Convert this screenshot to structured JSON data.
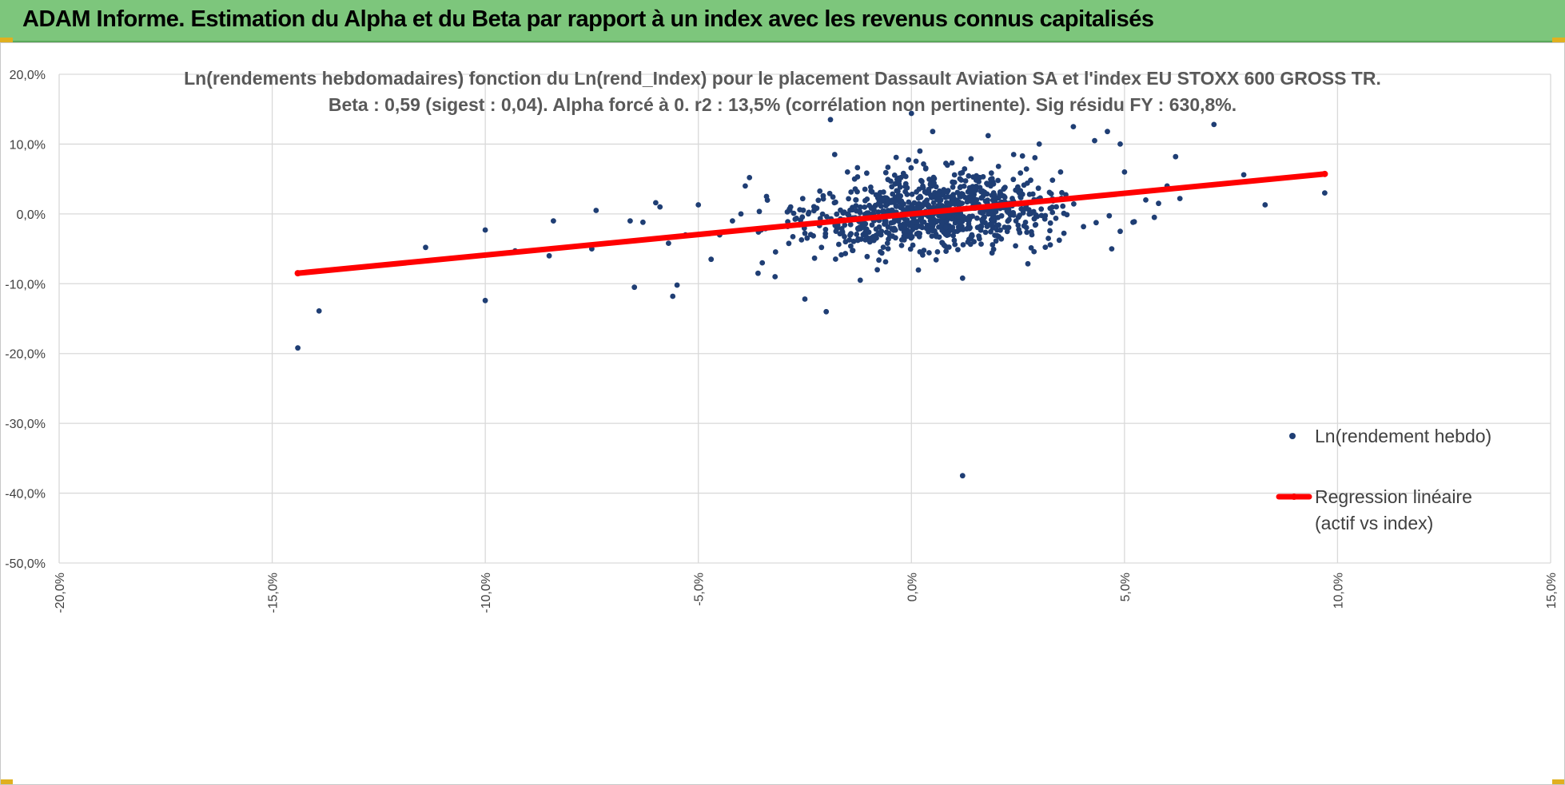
{
  "banner": {
    "title": "ADAM Informe. Estimation du Alpha et du Beta par rapport à un index avec les revenus connus capitalisés",
    "background": "#7dc67c"
  },
  "chart_data": {
    "type": "scatter",
    "title_line1": "Ln(rendements hebdomadaires) fonction du Ln(rend_Index) pour le placement Dassault Aviation SA et l'index EU STOXX 600 GROSS TR.",
    "title_line2": "Beta : 0,59 (sigest : 0,04). Alpha forcé à 0. r2 : 13,5% (corrélation non pertinente). Sig résidu FY : 630,8%.",
    "xlim": [
      -0.2,
      0.15
    ],
    "ylim": [
      -0.5,
      0.2
    ],
    "x_ticks": [
      -0.2,
      -0.15,
      -0.1,
      -0.05,
      0.0,
      0.05,
      0.1,
      0.15
    ],
    "x_tick_labels": [
      "-20,0%",
      "-15,0%",
      "-10,0%",
      "-5,0%",
      "0,0%",
      "5,0%",
      "10,0%",
      "15,0%"
    ],
    "y_ticks": [
      0.2,
      0.1,
      0.0,
      -0.1,
      -0.2,
      -0.3,
      -0.4,
      -0.5
    ],
    "y_tick_labels": [
      "20,0%",
      "10,0%",
      "0,0%",
      "-10,0%",
      "-20,0%",
      "-30,0%",
      "-40,0%",
      "-50,0%"
    ],
    "grid": true,
    "legend_position": "right",
    "legend": [
      "Ln(rendement hebdo)",
      "Regression linéaire",
      "(actif vs index)"
    ],
    "series": [
      {
        "name": "Ln(rendement hebdo)",
        "kind": "points",
        "color": "#1f3e74",
        "note_cluster": {
          "x_center": 0.005,
          "y_center": 0.003,
          "count_approx": 900
        },
        "points": [
          [
            -0.144,
            -0.192
          ],
          [
            -0.139,
            -0.139
          ],
          [
            -0.114,
            -0.048
          ],
          [
            -0.1,
            -0.023
          ],
          [
            -0.1,
            -0.124
          ],
          [
            -0.093,
            -0.053
          ],
          [
            -0.084,
            -0.01
          ],
          [
            -0.085,
            -0.06
          ],
          [
            -0.074,
            0.005
          ],
          [
            -0.075,
            -0.05
          ],
          [
            -0.066,
            -0.01
          ],
          [
            -0.065,
            -0.105
          ],
          [
            -0.063,
            -0.012
          ],
          [
            -0.06,
            0.016
          ],
          [
            -0.059,
            0.01
          ],
          [
            -0.057,
            -0.042
          ],
          [
            -0.056,
            -0.118
          ],
          [
            -0.055,
            -0.102
          ],
          [
            -0.053,
            -0.03
          ],
          [
            -0.05,
            0.013
          ],
          [
            -0.047,
            -0.065
          ],
          [
            -0.045,
            -0.03
          ],
          [
            -0.042,
            -0.01
          ],
          [
            -0.04,
            0.0
          ],
          [
            -0.039,
            0.04
          ],
          [
            -0.038,
            0.052
          ],
          [
            -0.036,
            -0.085
          ],
          [
            -0.035,
            -0.07
          ],
          [
            -0.034,
            0.025
          ],
          [
            -0.032,
            -0.09
          ],
          [
            -0.025,
            -0.122
          ],
          [
            -0.02,
            -0.14
          ],
          [
            -0.019,
            0.135
          ],
          [
            -0.018,
            0.085
          ],
          [
            -0.015,
            0.06
          ],
          [
            -0.012,
            -0.095
          ],
          [
            -0.008,
            -0.08
          ],
          [
            0.0,
            0.144
          ],
          [
            0.002,
            0.09
          ],
          [
            0.005,
            0.118
          ],
          [
            0.012,
            -0.092
          ],
          [
            0.012,
            -0.375
          ],
          [
            0.018,
            0.112
          ],
          [
            0.024,
            0.085
          ],
          [
            0.03,
            0.1
          ],
          [
            0.035,
            0.06
          ],
          [
            0.038,
            0.125
          ],
          [
            0.043,
            0.105
          ],
          [
            0.046,
            0.118
          ],
          [
            0.047,
            -0.05
          ],
          [
            0.049,
            0.1
          ],
          [
            0.049,
            -0.025
          ],
          [
            0.05,
            0.06
          ],
          [
            0.052,
            -0.012
          ],
          [
            0.055,
            0.02
          ],
          [
            0.057,
            -0.005
          ],
          [
            0.058,
            0.015
          ],
          [
            0.06,
            0.04
          ],
          [
            0.062,
            0.082
          ],
          [
            0.063,
            0.022
          ],
          [
            0.071,
            0.128
          ],
          [
            0.078,
            0.056
          ],
          [
            0.083,
            0.013
          ],
          [
            0.097,
            0.03
          ]
        ]
      },
      {
        "name": "Regression linéaire (actif vs index)",
        "kind": "line",
        "color": "#ff0000",
        "beta": 0.59,
        "x_range": [
          -0.144,
          0.097
        ]
      }
    ]
  }
}
